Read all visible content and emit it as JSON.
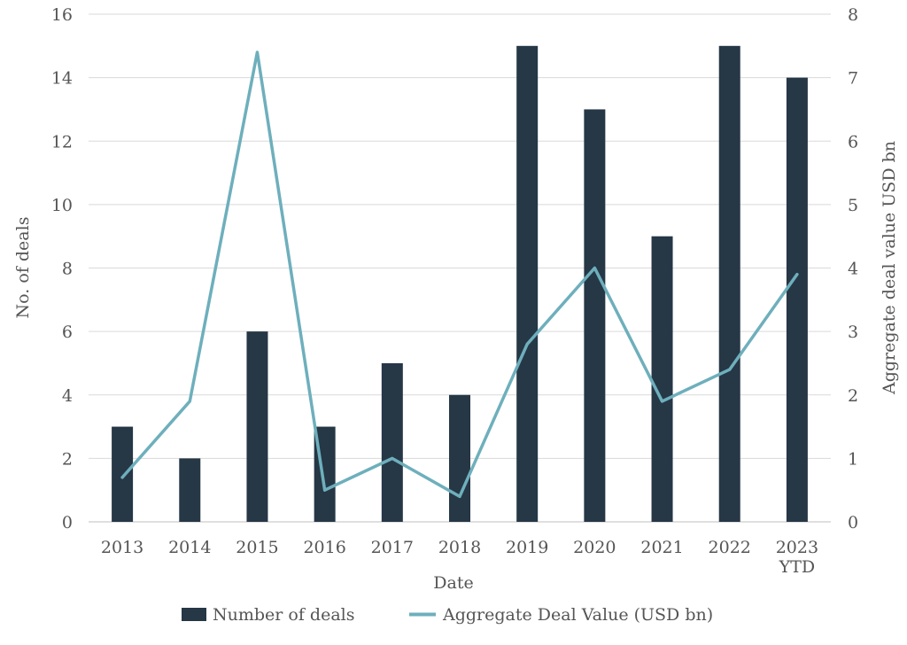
{
  "chart_data": {
    "type": "bar",
    "categories": [
      "2013",
      "2014",
      "2015",
      "2016",
      "2017",
      "2018",
      "2019",
      "2020",
      "2021",
      "2022",
      "2023\nYTD"
    ],
    "series": [
      {
        "name": "Number of deals",
        "type": "bar",
        "axis": "left",
        "color": "#263746",
        "values": [
          3,
          2,
          6,
          3,
          5,
          4,
          15,
          13,
          9,
          15,
          14
        ]
      },
      {
        "name": "Aggregate Deal Value (USD bn)",
        "type": "line",
        "axis": "right",
        "color": "#6eafbc",
        "values": [
          0.7,
          1.9,
          7.4,
          0.5,
          1.0,
          0.4,
          2.8,
          4.0,
          1.9,
          2.4,
          3.9
        ]
      }
    ],
    "xlabel": "Date",
    "ylabel": "No. of deals",
    "y2label": "Aggregate deal value USD bn",
    "ylim": [
      0,
      16
    ],
    "yticks": [
      0,
      2,
      4,
      6,
      8,
      10,
      12,
      14,
      16
    ],
    "y2lim": [
      0,
      8
    ],
    "y2ticks": [
      0,
      1,
      2,
      3,
      4,
      5,
      6,
      7,
      8
    ],
    "grid": true,
    "legend_position": "bottom"
  }
}
